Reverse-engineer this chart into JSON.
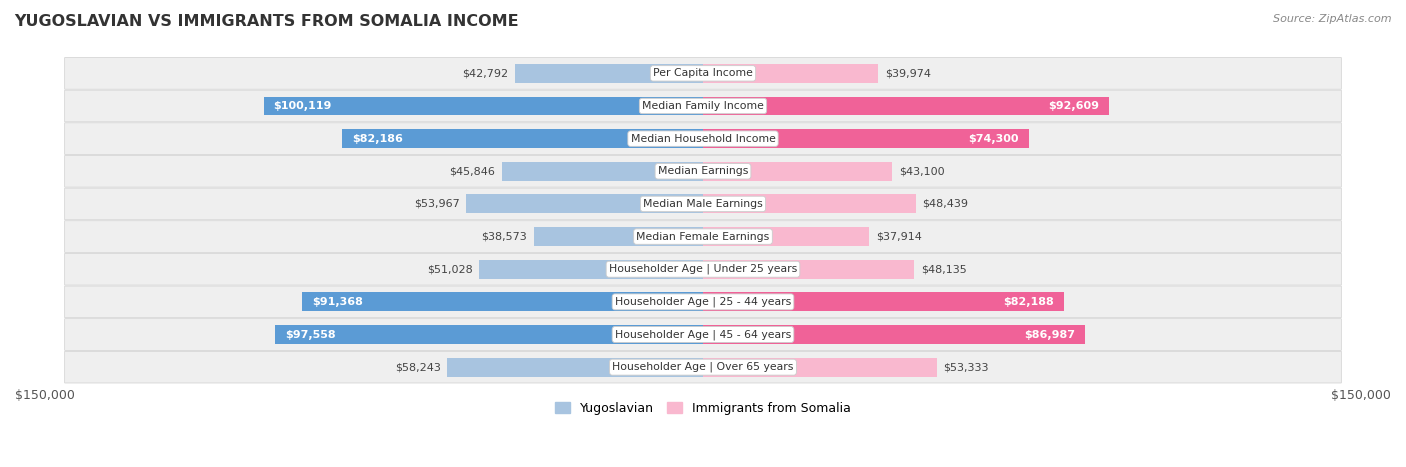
{
  "title": "YUGOSLAVIAN VS IMMIGRANTS FROM SOMALIA INCOME",
  "source": "Source: ZipAtlas.com",
  "max_val": 150000,
  "categories": [
    "Per Capita Income",
    "Median Family Income",
    "Median Household Income",
    "Median Earnings",
    "Median Male Earnings",
    "Median Female Earnings",
    "Householder Age | Under 25 years",
    "Householder Age | 25 - 44 years",
    "Householder Age | 45 - 64 years",
    "Householder Age | Over 65 years"
  ],
  "yugoslavian": [
    42792,
    100119,
    82186,
    45846,
    53967,
    38573,
    51028,
    91368,
    97558,
    58243
  ],
  "somalia": [
    39974,
    92609,
    74300,
    43100,
    48439,
    37914,
    48135,
    82188,
    86987,
    53333
  ],
  "yug_color_light": "#a8c4e0",
  "yug_color_dark": "#5b9bd5",
  "som_color_light": "#f9b8cf",
  "som_color_dark": "#f06298",
  "row_bg": "#efefef",
  "legend_yug": "Yugoslavian",
  "legend_som": "Immigrants from Somalia",
  "xlabel_left": "$150,000",
  "xlabel_right": "$150,000",
  "inside_threshold": 60000
}
